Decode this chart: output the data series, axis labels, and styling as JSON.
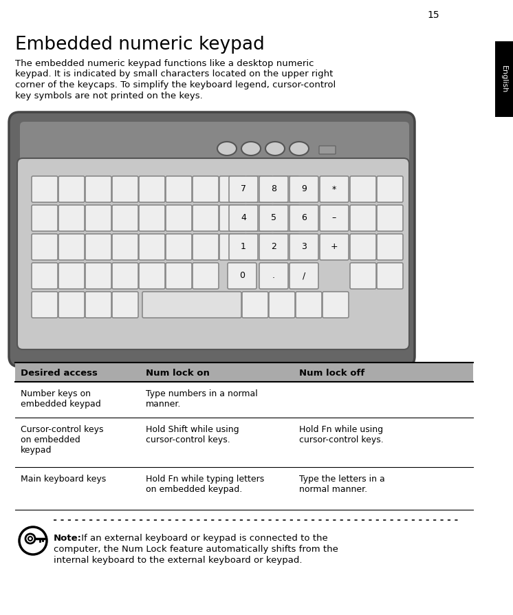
{
  "page_number": "15",
  "title": "Embedded numeric keypad",
  "body_text_lines": [
    "The embedded numeric keypad functions like a desktop numeric",
    "keypad. It is indicated by small characters located on the upper right",
    "corner of the keycaps. To simplify the keyboard legend, cursor-control",
    "key symbols are not printed on the keys."
  ],
  "sidebar_text": "English",
  "sidebar_bg": "#000000",
  "sidebar_text_color": "#ffffff",
  "table_header_bg": "#aaaaaa",
  "table_col1": "Desired access",
  "table_col2": "Num lock on",
  "table_col3": "Num lock off",
  "table_rows": [
    [
      "Number keys on\nembedded keypad",
      "Type numbers in a normal\nmanner.",
      ""
    ],
    [
      "Cursor-control keys\non embedded\nkeypad",
      "Hold Shift while using\ncursor-control keys.",
      "Hold Fn while using\ncursor-control keys."
    ],
    [
      "Main keyboard keys",
      "Hold Fn while typing letters\non embedded keypad.",
      "Type the letters in a\nnormal manner."
    ]
  ],
  "note_bold": "Note:",
  "note_lines": [
    " If an external keyboard or keypad is connected to the",
    "computer, the Num Lock feature automatically shifts from the",
    "internal keyboard to the external keyboard or keypad."
  ],
  "bg_color": "#ffffff",
  "kb_body_color": "#666666",
  "kb_body_edge": "#444444",
  "kb_top_panel": "#888888",
  "kb_key_face": "#e8e8e8",
  "kb_key_edge": "#999999",
  "kb_key_bright": "#f5f5f5",
  "kb_inner_bg": "#bbbbbb"
}
